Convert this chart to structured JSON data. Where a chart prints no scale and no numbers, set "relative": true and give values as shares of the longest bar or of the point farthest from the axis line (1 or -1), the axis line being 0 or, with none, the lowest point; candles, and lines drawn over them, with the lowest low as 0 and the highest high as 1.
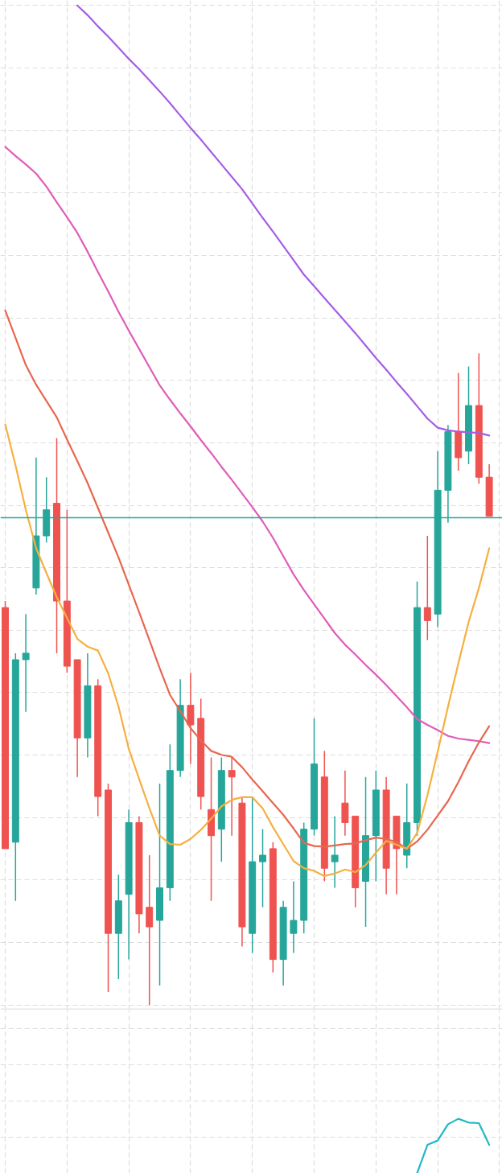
{
  "chart_data": [
    {
      "type": "candlestick",
      "relative": true,
      "tick_labels": false,
      "grid": true,
      "categories": [
        null,
        null,
        null,
        null,
        null,
        null,
        null,
        null,
        null,
        null,
        null,
        null,
        null,
        null,
        null,
        null,
        null,
        null,
        null,
        null,
        null,
        null,
        null,
        null,
        null,
        null,
        null,
        null,
        null,
        null,
        null,
        null,
        null,
        null,
        null,
        null,
        null,
        null,
        null,
        null,
        null,
        null,
        null,
        null,
        null,
        null,
        null,
        null
      ],
      "ohlc": [
        [
          0.61,
          0.62,
          0.24,
          0.24
        ],
        [
          0.25,
          0.54,
          0.16,
          0.53
        ],
        [
          0.53,
          0.6,
          0.45,
          0.54
        ],
        [
          0.64,
          0.84,
          0.63,
          0.72
        ],
        [
          0.72,
          0.81,
          0.71,
          0.76
        ],
        [
          0.77,
          0.87,
          0.54,
          0.62
        ],
        [
          0.62,
          0.76,
          0.51,
          0.52
        ],
        [
          0.53,
          0.53,
          0.35,
          0.41
        ],
        [
          0.41,
          0.54,
          0.38,
          0.49
        ],
        [
          0.49,
          0.5,
          0.29,
          0.32
        ],
        [
          0.33,
          0.34,
          0.02,
          0.11
        ],
        [
          0.11,
          0.2,
          0.04,
          0.16
        ],
        [
          0.17,
          0.3,
          0.07,
          0.28
        ],
        [
          0.28,
          0.29,
          0.11,
          0.14
        ],
        [
          0.15,
          0.23,
          0,
          0.12
        ],
        [
          0.13,
          0.34,
          0.03,
          0.18
        ],
        [
          0.18,
          0.4,
          0.16,
          0.36
        ],
        [
          0.36,
          0.5,
          0.35,
          0.46
        ],
        [
          0.46,
          0.51,
          0.37,
          0.43
        ],
        [
          0.44,
          0.47,
          0.3,
          0.32
        ],
        [
          0.3,
          0.38,
          0.16,
          0.26
        ],
        [
          0.27,
          0.38,
          0.22,
          0.36
        ],
        [
          0.36,
          0.38,
          0.26,
          0.35
        ],
        [
          0.31,
          0.32,
          0.09,
          0.12
        ],
        [
          0.11,
          0.32,
          0.08,
          0.22
        ],
        [
          0.22,
          0.27,
          0.15,
          0.23
        ],
        [
          0.24,
          0.25,
          0.05,
          0.07
        ],
        [
          0.07,
          0.16,
          0.03,
          0.15
        ],
        [
          0.11,
          0.19,
          0.08,
          0.13
        ],
        [
          0.13,
          0.28,
          0.11,
          0.27
        ],
        [
          0.27,
          0.44,
          0.26,
          0.37
        ],
        [
          0.35,
          0.39,
          0.19,
          0.21
        ],
        [
          0.22,
          0.29,
          0.18,
          0.23
        ],
        [
          0.31,
          0.36,
          0.26,
          0.28
        ],
        [
          0.29,
          0.29,
          0.15,
          0.18
        ],
        [
          0.19,
          0.35,
          0.12,
          0.26
        ],
        [
          0.26,
          0.36,
          0.19,
          0.33
        ],
        [
          0.33,
          0.35,
          0.17,
          0.21
        ],
        [
          0.29,
          0.29,
          0.17,
          0.24
        ],
        [
          0.23,
          0.34,
          0.21,
          0.28
        ],
        [
          0.28,
          0.65,
          0.26,
          0.61
        ],
        [
          0.61,
          0.72,
          0.56,
          0.59
        ],
        [
          0.6,
          0.85,
          0.58,
          0.79
        ],
        [
          0.79,
          0.89,
          0.74,
          0.88
        ],
        [
          0.88,
          0.97,
          0.82,
          0.84
        ],
        [
          0.85,
          0.98,
          0.83,
          0.92
        ],
        [
          0.92,
          1,
          0.8,
          0.81
        ],
        [
          0.81,
          0.83,
          0.75,
          0.75
        ]
      ],
      "colors": [
        "#ef5350",
        "#26a69a",
        "#26a69a",
        "#26a69a",
        "#26a69a",
        "#ef5350",
        "#ef5350",
        "#ef5350",
        "#26a69a",
        "#ef5350",
        "#ef5350",
        "#26a69a",
        "#26a69a",
        "#ef5350",
        "#ef5350",
        "#26a69a",
        "#26a69a",
        "#26a69a",
        "#ef5350",
        "#ef5350",
        "#ef5350",
        "#26a69a",
        "#ef5350",
        "#ef5350",
        "#26a69a",
        "#26a69a",
        "#ef5350",
        "#26a69a",
        "#26a69a",
        "#26a69a",
        "#26a69a",
        "#ef5350",
        "#26a69a",
        "#ef5350",
        "#ef5350",
        "#26a69a",
        "#26a69a",
        "#ef5350",
        "#ef5350",
        "#26a69a",
        "#26a69a",
        "#ef5350",
        "#26a69a",
        "#26a69a",
        "#ef5350",
        "#26a69a",
        "#ef5350",
        "#ef5350"
      ],
      "series": [
        {
          "type": "line",
          "color": "#a45ee5",
          "values": [
            null,
            null,
            null,
            null,
            null,
            null,
            null,
            1.534,
            1.519,
            1.502,
            1.486,
            1.469,
            1.452,
            1.436,
            1.419,
            1.402,
            1.384,
            1.365,
            1.346,
            1.328,
            1.309,
            1.29,
            1.271,
            1.252,
            1.23,
            1.208,
            1.187,
            1.165,
            1.143,
            1.121,
            1.103,
            1.085,
            1.067,
            1.049,
            1.031,
            1.012,
            0.993,
            0.975,
            0.956,
            0.938,
            0.919,
            0.9,
            0.886,
            0.882,
            0.88,
            0.879,
            0.878,
            0.874
          ]
        },
        {
          "type": "line",
          "color": "#e05cb8",
          "values": [
            1.317,
            1.303,
            1.29,
            1.276,
            1.256,
            1.232,
            1.209,
            1.185,
            1.156,
            1.125,
            1.095,
            1.064,
            1.035,
            1.007,
            0.979,
            0.951,
            0.929,
            0.908,
            0.888,
            0.867,
            0.847,
            0.826,
            0.806,
            0.785,
            0.764,
            0.742,
            0.717,
            0.689,
            0.661,
            0.637,
            0.615,
            0.593,
            0.571,
            0.553,
            0.538,
            0.522,
            0.507,
            0.491,
            0.474,
            0.457,
            0.439,
            0.43,
            0.422,
            0.413,
            0.409,
            0.407,
            0.405,
            0.402
          ]
        },
        {
          "type": "line",
          "color": "#e8674f",
          "values": [
            1.066,
            1.024,
            0.982,
            0.952,
            0.927,
            0.902,
            0.868,
            0.835,
            0.801,
            0.763,
            0.725,
            0.687,
            0.645,
            0.603,
            0.56,
            0.517,
            0.476,
            0.451,
            0.425,
            0.406,
            0.39,
            0.384,
            0.381,
            0.365,
            0.346,
            0.328,
            0.31,
            0.292,
            0.271,
            0.249,
            0.244,
            0.243,
            0.245,
            0.247,
            0.248,
            0.253,
            0.257,
            0.255,
            0.25,
            0.24,
            0.251,
            0.269,
            0.291,
            0.313,
            0.342,
            0.374,
            0.403,
            0.428
          ]
        },
        {
          "type": "line",
          "color": "#f5b041",
          "values": [
            0.891,
            0.828,
            0.76,
            0.701,
            0.663,
            0.626,
            0.594,
            0.562,
            0.55,
            0.544,
            0.509,
            0.458,
            0.393,
            0.347,
            0.302,
            0.26,
            0.247,
            0.246,
            0.255,
            0.269,
            0.286,
            0.305,
            0.315,
            0.319,
            0.319,
            0.302,
            0.273,
            0.247,
            0.221,
            0.21,
            0.206,
            0.198,
            0.202,
            0.208,
            0.204,
            0.215,
            0.234,
            0.252,
            0.246,
            0.24,
            0.264,
            0.322,
            0.389,
            0.458,
            0.524,
            0.588,
            0.64,
            0.701
          ]
        }
      ],
      "ref_lines": [
        {
          "axis": "y",
          "value": 0.748,
          "color": "#26a69a"
        }
      ]
    },
    {
      "type": "line",
      "relative": true,
      "tick_labels": false,
      "grid": true,
      "categories": [
        null,
        null,
        null,
        null,
        null,
        null,
        null,
        null,
        null,
        null,
        null,
        null,
        null,
        null,
        null,
        null,
        null,
        null,
        null,
        null,
        null,
        null,
        null,
        null,
        null,
        null,
        null,
        null,
        null,
        null,
        null,
        null,
        null,
        null,
        null,
        null,
        null,
        null,
        null,
        null,
        null,
        null,
        null,
        null,
        null,
        null,
        null,
        null
      ],
      "series": [
        {
          "color": "#22b8c4",
          "values": [
            null,
            null,
            null,
            null,
            null,
            null,
            null,
            null,
            null,
            null,
            null,
            null,
            null,
            null,
            null,
            null,
            null,
            null,
            null,
            null,
            null,
            null,
            null,
            null,
            null,
            null,
            null,
            null,
            null,
            null,
            null,
            null,
            null,
            null,
            null,
            null,
            null,
            null,
            null,
            null,
            0,
            0.52,
            0.6,
            0.9,
            1,
            0.93,
            0.92,
            0.52
          ]
        }
      ]
    }
  ]
}
